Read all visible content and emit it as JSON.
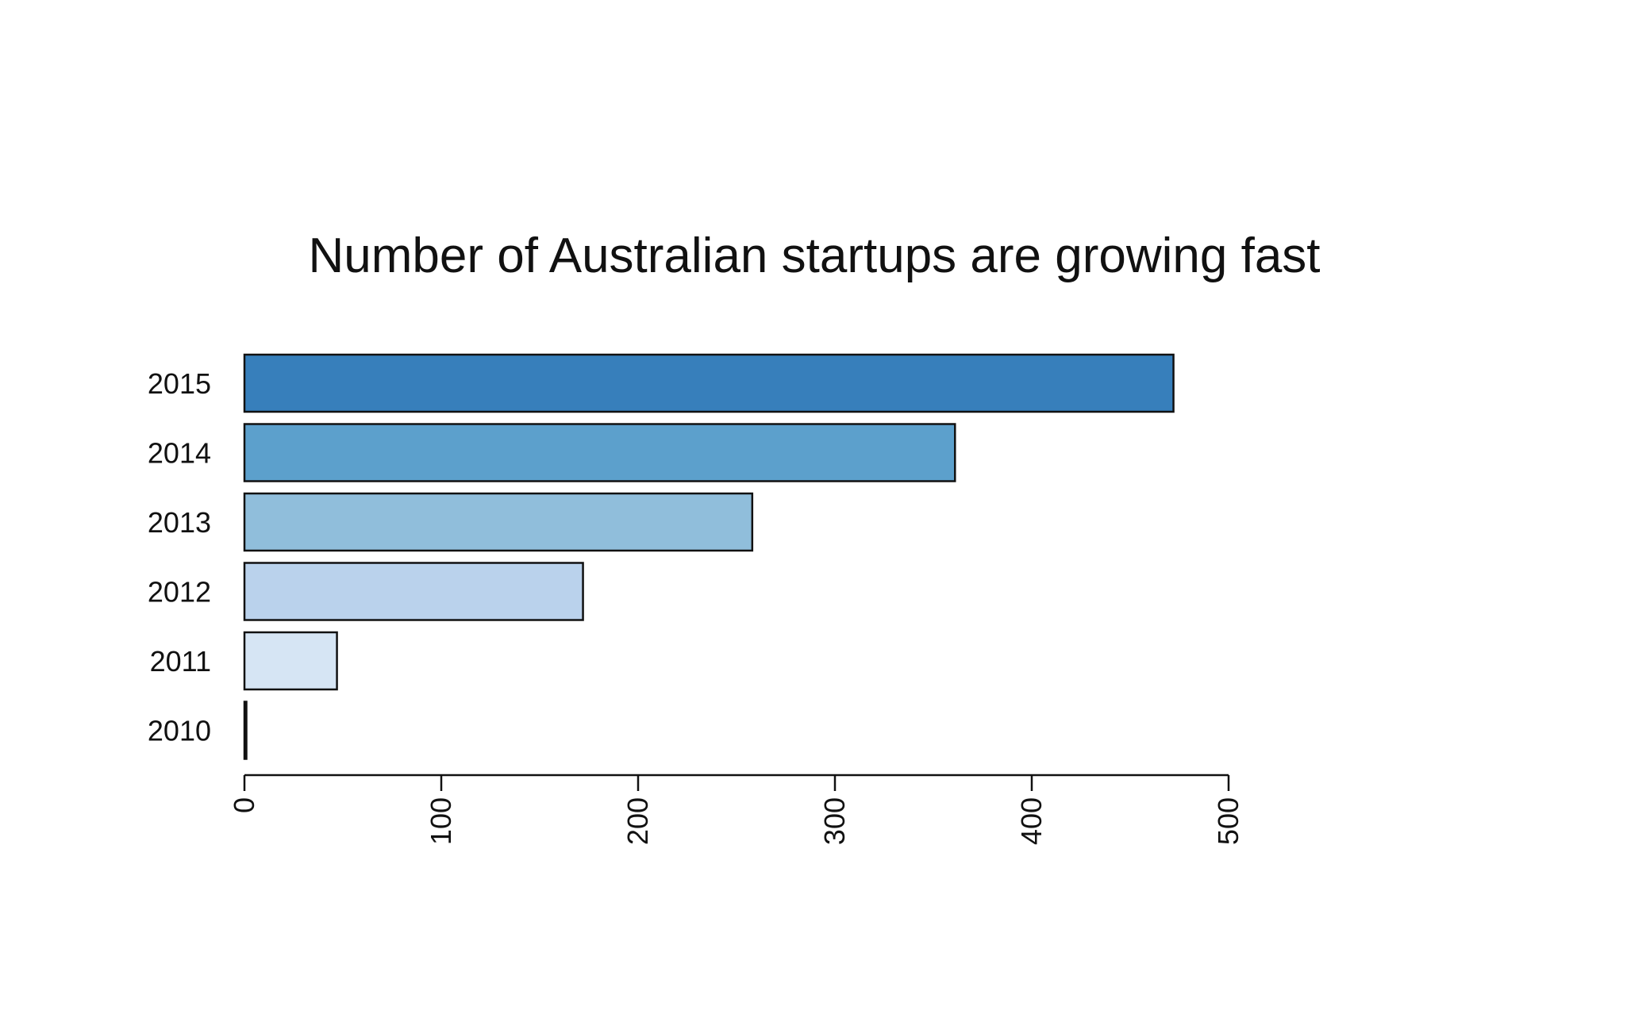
{
  "chart_data": {
    "type": "bar",
    "orientation": "horizontal",
    "title": "Number of Australian startups are growing fast",
    "xlabel": "",
    "ylabel": "",
    "categories": [
      "2010",
      "2011",
      "2012",
      "2013",
      "2014",
      "2015"
    ],
    "values": [
      1,
      47,
      172,
      258,
      361,
      472
    ],
    "colors": [
      "#f2f7fc",
      "#d6e5f4",
      "#bad2ec",
      "#90bedb",
      "#5ca0cc",
      "#377fbb"
    ],
    "xlim": [
      0,
      500
    ],
    "xticks": [
      0,
      100,
      200,
      300,
      400,
      500
    ],
    "tick_label_rotation": "vertical",
    "grid": false,
    "legend": "none"
  }
}
